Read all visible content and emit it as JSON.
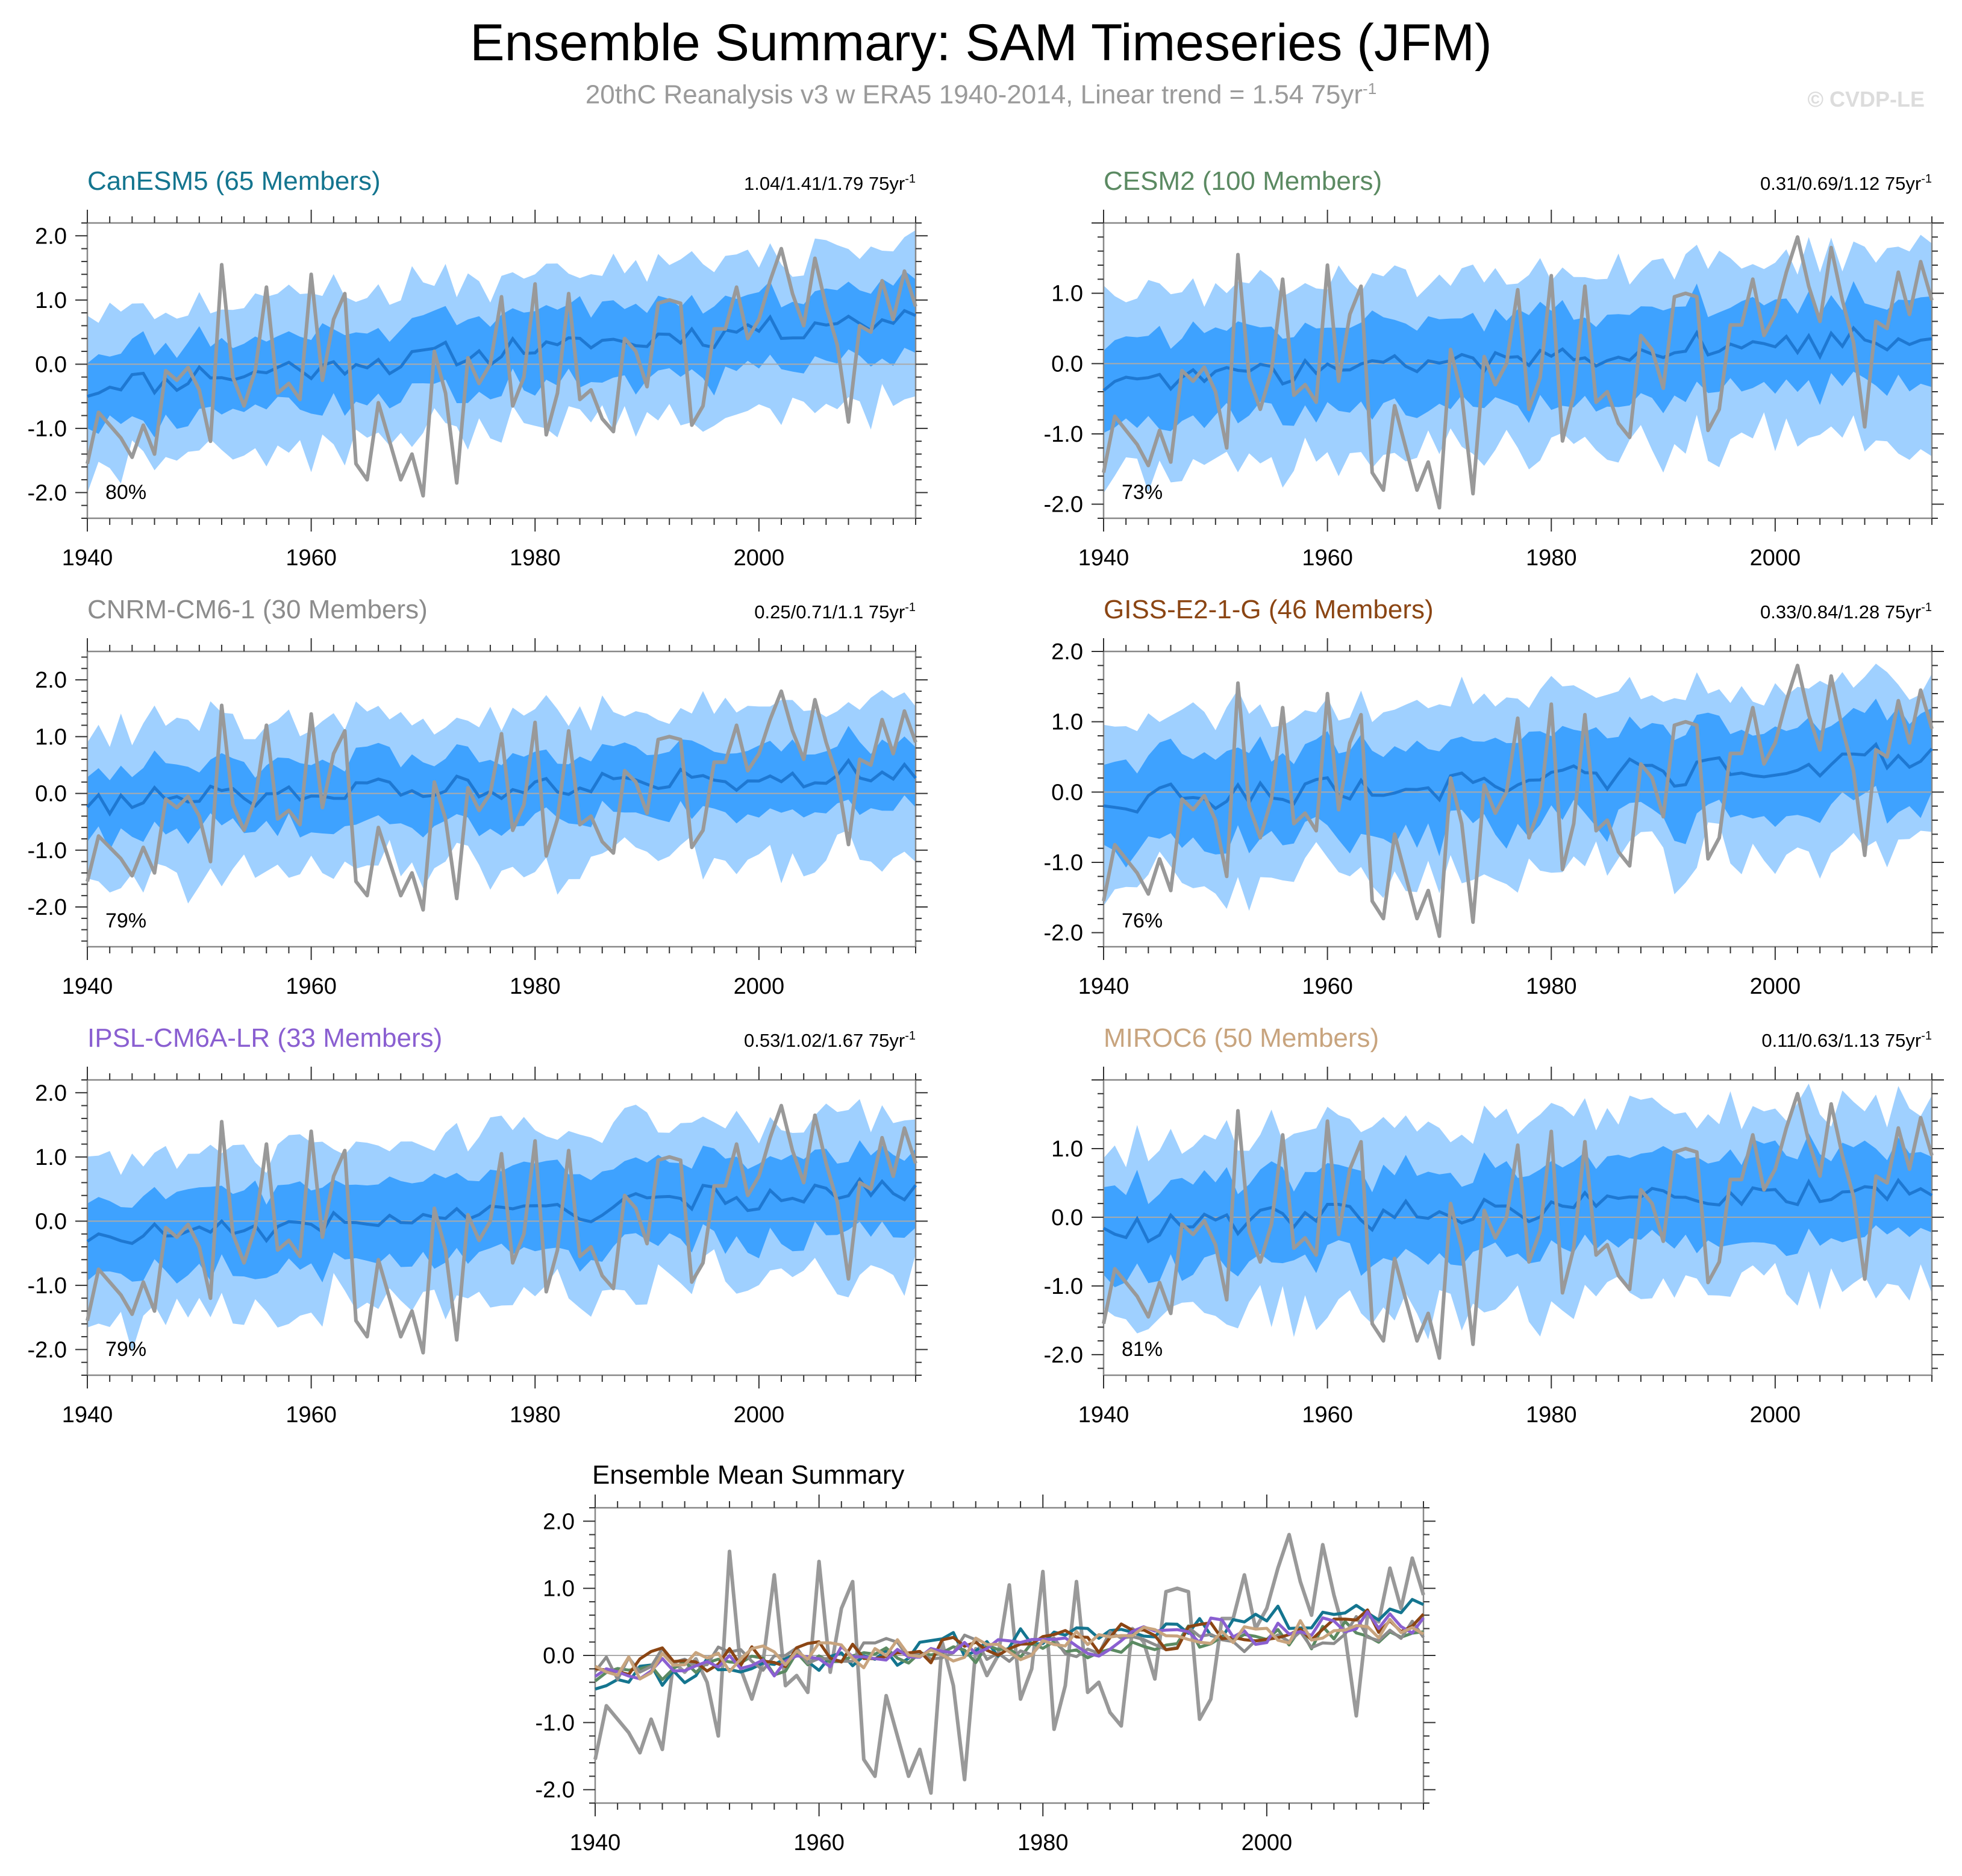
{
  "figure": {
    "title": "Ensemble Summary: SAM Timeseries (JFM)",
    "subtitle_main": "20thC Reanalysis v3 w ERA5 1940-2014, Linear trend = 1.54 75yr",
    "subtitle_exp": "-1",
    "credit": "© CVDP-LE"
  },
  "colors": {
    "band_outer": "#9fd0ff",
    "band_inner": "#3ea2ff",
    "ens_mean": "#1e78d2",
    "obs": "#999999",
    "zero_line": "#aaaaaa",
    "axis": "#888888"
  },
  "chart_data": [
    {
      "type": "area",
      "model": "CanESM5",
      "title": "CanESM5 (65 Members)",
      "title_color": "#14758f",
      "trend_text": "1.04/1.41/1.79 75yr",
      "trend_exp": "-1",
      "percent_label": "80%",
      "xlim": [
        1940,
        2014
      ],
      "ylim": [
        -2.4,
        2.2
      ],
      "xticks": [
        "1940",
        "1960",
        "1980",
        "2000"
      ],
      "yticks": [
        "2.0",
        "1.0",
        "0.0",
        "-1.0",
        "-2.0"
      ],
      "mean_start": -0.35,
      "mean_end": 0.75,
      "inner_halfwidth": 0.55,
      "outer_halfwidth": 1.1
    },
    {
      "type": "area",
      "model": "CESM2",
      "title": "CESM2 (100 Members)",
      "title_color": "#5b8a62",
      "trend_text": "0.31/0.69/1.12 75yr",
      "trend_exp": "-1",
      "percent_label": "73%",
      "xlim": [
        1940,
        2014
      ],
      "ylim": [
        -2.2,
        2.0
      ],
      "xticks": [
        "1940",
        "1960",
        "1980",
        "2000"
      ],
      "yticks": [
        "1.0",
        "0.0",
        "-1.0",
        "-2.0"
      ],
      "mean_start": -0.25,
      "mean_end": 0.4,
      "inner_halfwidth": 0.6,
      "outer_halfwidth": 1.2
    },
    {
      "type": "area",
      "model": "CNRM-CM6-1",
      "title": "CNRM-CM6-1 (30 Members)",
      "title_color": "#8c8c8c",
      "trend_text": "0.25/0.71/1.1 75yr",
      "trend_exp": "-1",
      "percent_label": "79%",
      "xlim": [
        1940,
        2014
      ],
      "ylim": [
        -2.7,
        2.5
      ],
      "xticks": [
        "1940",
        "1960",
        "1980",
        "2000"
      ],
      "yticks": [
        "2.0",
        "1.0",
        "0.0",
        "-1.0",
        "-2.0"
      ],
      "mean_start": -0.15,
      "mean_end": 0.4,
      "inner_halfwidth": 0.55,
      "outer_halfwidth": 1.2
    },
    {
      "type": "area",
      "model": "GISS-E2-1-G",
      "title": "GISS-E2-1-G (46 Members)",
      "title_color": "#8b4513",
      "trend_text": "0.33/0.84/1.28 75yr",
      "trend_exp": "-1",
      "percent_label": "76%",
      "xlim": [
        1940,
        2014
      ],
      "ylim": [
        -2.2,
        2.0
      ],
      "xticks": [
        "1940",
        "1960",
        "1980",
        "2000"
      ],
      "yticks": [
        "2.0",
        "1.0",
        "0.0",
        "-1.0",
        "-2.0"
      ],
      "mean_start": -0.15,
      "mean_end": 0.5,
      "inner_halfwidth": 0.6,
      "outer_halfwidth": 1.1
    },
    {
      "type": "area",
      "model": "IPSL-CM6A-LR",
      "title": "IPSL-CM6A-LR (33 Members)",
      "title_color": "#8a5fd1",
      "trend_text": "0.53/1.02/1.67 75yr",
      "trend_exp": "-1",
      "percent_label": "79%",
      "xlim": [
        1940,
        2014
      ],
      "ylim": [
        -2.4,
        2.2
      ],
      "xticks": [
        "1940",
        "1960",
        "1980",
        "2000"
      ],
      "yticks": [
        "2.0",
        "1.0",
        "0.0",
        "-1.0",
        "-2.0"
      ],
      "mean_start": -0.3,
      "mean_end": 0.55,
      "inner_halfwidth": 0.6,
      "outer_halfwidth": 1.15
    },
    {
      "type": "area",
      "model": "MIROC6",
      "title": "MIROC6 (50 Members)",
      "title_color": "#c8a47e",
      "trend_text": "0.11/0.63/1.13 75yr",
      "trend_exp": "-1",
      "percent_label": "81%",
      "xlim": [
        1940,
        2014
      ],
      "ylim": [
        -2.3,
        2.0
      ],
      "xticks": [
        "1940",
        "1960",
        "1980",
        "2000"
      ],
      "yticks": [
        "1.0",
        "0.0",
        "-1.0",
        "-2.0"
      ],
      "mean_start": -0.15,
      "mean_end": 0.4,
      "inner_halfwidth": 0.6,
      "outer_halfwidth": 1.2
    },
    {
      "type": "line",
      "model": "Ensemble Mean",
      "title": "Ensemble Mean Summary",
      "xlim": [
        1940,
        2014
      ],
      "ylim": [
        -2.2,
        2.2
      ],
      "xticks": [
        "1940",
        "1960",
        "1980",
        "2000"
      ],
      "yticks": [
        "2.0",
        "1.0",
        "0.0",
        "-1.0",
        "-2.0"
      ]
    }
  ],
  "obs_series": {
    "name": "20thC Reanalysis v3 w ERA5",
    "years": [
      1940,
      2014
    ],
    "values": [
      -1.55,
      -0.75,
      -0.95,
      -1.15,
      -1.45,
      -0.95,
      -1.4,
      -0.1,
      -0.25,
      -0.05,
      -0.4,
      -1.2,
      1.55,
      -0.2,
      -0.65,
      -0.1,
      1.2,
      -0.45,
      -0.3,
      -0.55,
      1.4,
      -0.25,
      0.7,
      1.1,
      -1.55,
      -1.8,
      -0.6,
      -1.2,
      -1.8,
      -1.4,
      -2.05,
      0.2,
      -0.45,
      -1.85,
      0.1,
      -0.3,
      0.0,
      1.05,
      -0.65,
      -0.2,
      1.25,
      -1.1,
      -0.45,
      1.1,
      -0.55,
      -0.4,
      -0.85,
      -1.05,
      0.4,
      0.2,
      -0.35,
      0.95,
      1.0,
      0.95,
      -0.95,
      -0.65,
      0.55,
      0.55,
      1.2,
      0.4,
      0.7,
      1.3,
      1.8,
      1.1,
      0.6,
      1.65,
      0.9,
      0.3,
      -0.9,
      0.6,
      0.5,
      1.3,
      0.7,
      1.45,
      0.9
    ]
  }
}
